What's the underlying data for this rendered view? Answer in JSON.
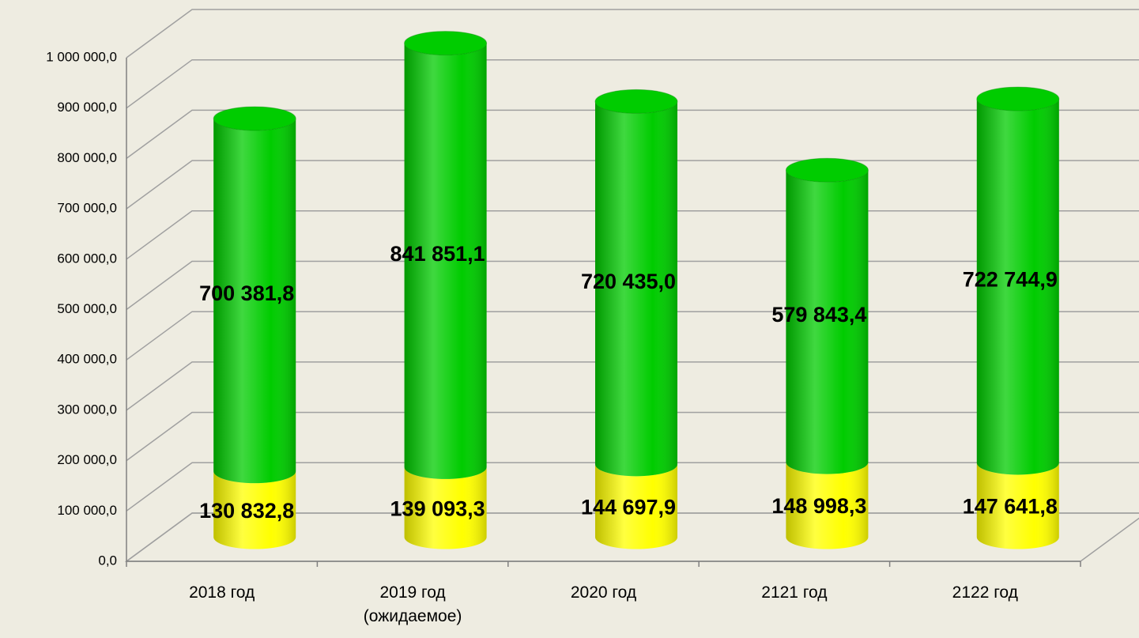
{
  "chart_data": {
    "type": "bar3d_stacked",
    "categories": [
      "2018 год",
      "2019 год (ожидаемое)",
      "2020 год",
      "2121 год",
      "2122 год"
    ],
    "series": [
      {
        "color": "#ffff00",
        "values": [
          130832.8,
          139093.3,
          144697.9,
          148998.3,
          147641.8
        ],
        "value_labels": [
          "130 832,8",
          "139 093,3",
          "144 697,9",
          "148 998,3",
          "147 641,8"
        ]
      },
      {
        "color": "#00cc00",
        "values": [
          700381.8,
          841851.1,
          720435.0,
          579843.4,
          722744.9
        ],
        "value_labels": [
          "700 381,8",
          "841 851,1",
          "720 435,0",
          "579 843,4",
          "722 744,9"
        ]
      }
    ],
    "ylim": [
      0,
      1000000
    ],
    "yticks": [
      {
        "value": 0,
        "label": "0,0"
      },
      {
        "value": 100000,
        "label": "100 000,0"
      },
      {
        "value": 200000,
        "label": "200 000,0"
      },
      {
        "value": 300000,
        "label": "300 000,0"
      },
      {
        "value": 400000,
        "label": "400 000,0"
      },
      {
        "value": 500000,
        "label": "500 000,0"
      },
      {
        "value": 600000,
        "label": "600 000,0"
      },
      {
        "value": 700000,
        "label": "700 000,0"
      },
      {
        "value": 800000,
        "label": "800 000,0"
      },
      {
        "value": 900000,
        "label": "900 000,0"
      },
      {
        "value": 1000000,
        "label": "1 000 000,0"
      }
    ],
    "grid": true
  }
}
